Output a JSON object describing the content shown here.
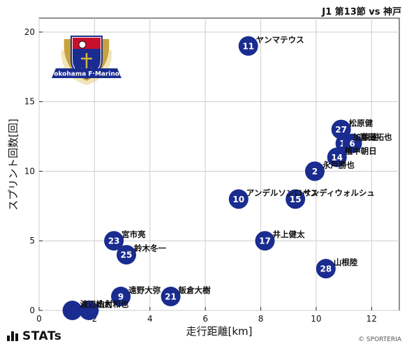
{
  "header": {
    "title": "J1 第13節 vs 神戸"
  },
  "logo": {
    "text": "Yokohama F·Marinos"
  },
  "footer": {
    "brand": "STATs",
    "credit": "© SPORTERIA"
  },
  "colors": {
    "marker": "#1a2c8f",
    "marker_text": "#ffffff",
    "grid": "#cccccc"
  },
  "chart_data": {
    "type": "scatter",
    "xlabel": "走行距離[km]",
    "ylabel": "スプリント回数[回]",
    "xlim": [
      0,
      13
    ],
    "ylim": [
      0,
      21
    ],
    "xticks": [
      0,
      2,
      4,
      6,
      8,
      10,
      12
    ],
    "yticks": [
      0,
      5,
      10,
      15,
      20
    ],
    "grid": true,
    "points": [
      {
        "number": "11",
        "name": "ヤンマテウス",
        "x": 7.55,
        "y": 19
      },
      {
        "number": "27",
        "name": "松原健",
        "x": 10.9,
        "y": 13
      },
      {
        "number": "16",
        "name": "加藤蓮",
        "x": 11.05,
        "y": 12
      },
      {
        "number": "6",
        "name": "喜田拓也",
        "x": 11.3,
        "y": 12
      },
      {
        "number": "14",
        "name": "植中朝日",
        "x": 10.75,
        "y": 11
      },
      {
        "number": "2",
        "name": "永戸勝也",
        "x": 9.95,
        "y": 10
      },
      {
        "number": "10",
        "name": "アンデルソンロペス",
        "x": 7.2,
        "y": 8
      },
      {
        "number": "15",
        "name": "サンディウォルシュ",
        "x": 9.25,
        "y": 8
      },
      {
        "number": "17",
        "name": "井上健太",
        "x": 8.15,
        "y": 5
      },
      {
        "number": "23",
        "name": "宮市亮",
        "x": 2.7,
        "y": 5
      },
      {
        "number": "25",
        "name": "鈴木冬一",
        "x": 3.15,
        "y": 4
      },
      {
        "number": "28",
        "name": "山根陸",
        "x": 10.35,
        "y": 3
      },
      {
        "number": "9",
        "name": "遠野大弥",
        "x": 2.95,
        "y": 1
      },
      {
        "number": "21",
        "name": "飯倉大樹",
        "x": 4.75,
        "y": 1
      },
      {
        "number": "",
        "name": "渡辺皓太",
        "x": 1.2,
        "y": 0
      },
      {
        "number": "",
        "name": "山村和也",
        "x": 1.8,
        "y": 0
      }
    ]
  }
}
